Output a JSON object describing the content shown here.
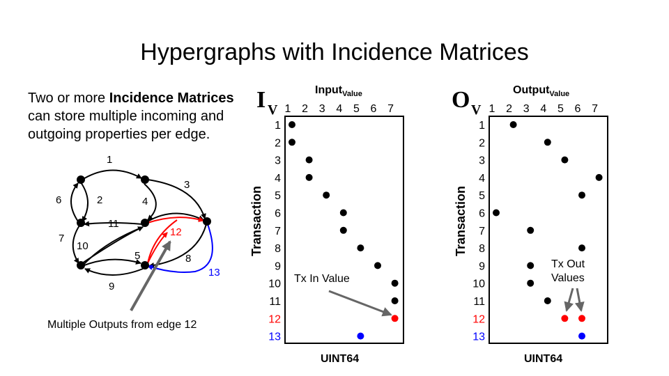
{
  "title": "Hypergraphs with Incidence Matrices",
  "intro": {
    "prefix": "Two or more ",
    "bold": "Incidence Matrices",
    "suffix": " can store multiple incoming and outgoing properties per edge."
  },
  "graph": {
    "edge_labels": [
      "1",
      "2",
      "3",
      "4",
      "5",
      "6",
      "7",
      "8",
      "9",
      "10",
      "11",
      "12",
      "13"
    ],
    "caption": "Multiple Outputs from edge 12"
  },
  "left_matrix": {
    "symbol": "I",
    "symbol_sub": "V",
    "header": "Input",
    "header_sub": "Value",
    "columns": [
      "1",
      "2",
      "3",
      "4",
      "5",
      "6",
      "7"
    ],
    "rows": [
      "1",
      "2",
      "3",
      "4",
      "5",
      "6",
      "7",
      "8",
      "9",
      "10",
      "11",
      "12",
      "13"
    ],
    "row_axis_label": "Transaction",
    "footer": "UINT64",
    "annotation": "Tx In Value",
    "entries": [
      {
        "row": 1,
        "col": 1,
        "color": "#000000"
      },
      {
        "row": 2,
        "col": 1,
        "color": "#000000"
      },
      {
        "row": 3,
        "col": 2,
        "color": "#000000"
      },
      {
        "row": 4,
        "col": 2,
        "color": "#000000"
      },
      {
        "row": 5,
        "col": 3,
        "color": "#000000"
      },
      {
        "row": 6,
        "col": 4,
        "color": "#000000"
      },
      {
        "row": 7,
        "col": 4,
        "color": "#000000"
      },
      {
        "row": 8,
        "col": 5,
        "color": "#000000"
      },
      {
        "row": 9,
        "col": 6,
        "color": "#000000"
      },
      {
        "row": 10,
        "col": 7,
        "color": "#000000"
      },
      {
        "row": 11,
        "col": 7,
        "color": "#000000"
      },
      {
        "row": 12,
        "col": 7,
        "color": "#ff0000"
      },
      {
        "row": 13,
        "col": 5,
        "color": "#0000ff"
      }
    ]
  },
  "right_matrix": {
    "symbol": "O",
    "symbol_sub": "V",
    "header": "Output",
    "header_sub": "Value",
    "columns": [
      "1",
      "2",
      "3",
      "4",
      "5",
      "6",
      "7"
    ],
    "rows": [
      "1",
      "2",
      "3",
      "4",
      "5",
      "6",
      "7",
      "8",
      "9",
      "10",
      "11",
      "12",
      "13"
    ],
    "row_axis_label": "Transaction",
    "footer": "UINT64",
    "annotation_line1": "Tx Out",
    "annotation_line2": "Values",
    "entries": [
      {
        "row": 1,
        "col": 2,
        "color": "#000000"
      },
      {
        "row": 2,
        "col": 4,
        "color": "#000000"
      },
      {
        "row": 3,
        "col": 5,
        "color": "#000000"
      },
      {
        "row": 4,
        "col": 7,
        "color": "#000000"
      },
      {
        "row": 5,
        "col": 6,
        "color": "#000000"
      },
      {
        "row": 6,
        "col": 1,
        "color": "#000000"
      },
      {
        "row": 7,
        "col": 3,
        "color": "#000000"
      },
      {
        "row": 8,
        "col": 6,
        "color": "#000000"
      },
      {
        "row": 9,
        "col": 3,
        "color": "#000000"
      },
      {
        "row": 10,
        "col": 3,
        "color": "#000000"
      },
      {
        "row": 11,
        "col": 4,
        "color": "#000000"
      },
      {
        "row": 12,
        "col": 5,
        "color": "#ff0000"
      },
      {
        "row": 12,
        "col": 6,
        "color": "#ff0000"
      },
      {
        "row": 13,
        "col": 6,
        "color": "#0000ff"
      }
    ]
  },
  "colors": {
    "red": "#ff0000",
    "blue": "#0000ff",
    "black": "#000000",
    "arrow_gray": "#666666"
  }
}
